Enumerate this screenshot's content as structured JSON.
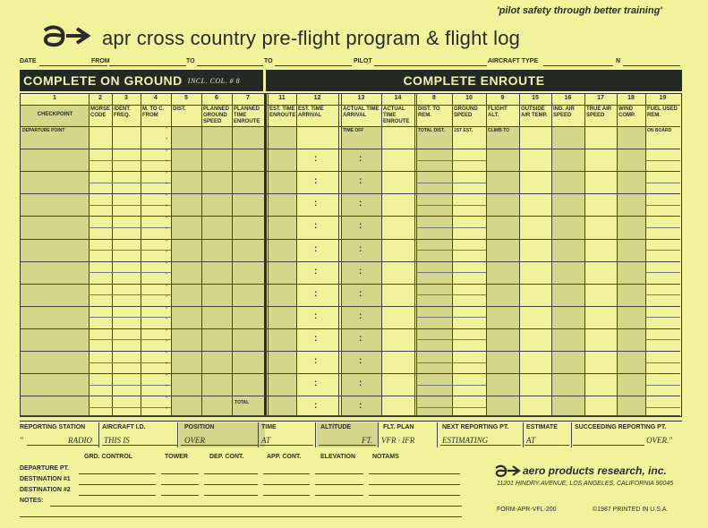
{
  "tagline": "'pilot safety through better training'",
  "title": "apr  cross country pre-flight program & flight log",
  "header_fields": [
    "DATE",
    "FROM",
    "TO",
    "TO",
    "PILOT",
    "AIRCRAFT TYPE",
    "N"
  ],
  "band_left": "COMPLETE ON GROUND",
  "band_left_note": "INCL. COL. # 8",
  "band_right": "COMPLETE ENROUTE",
  "col_numbers": [
    "1",
    "2",
    "3",
    "4",
    "5",
    "6",
    "7",
    "11",
    "12",
    "13",
    "14",
    "8",
    "10",
    "9",
    "15",
    "16",
    "17",
    "18",
    "19"
  ],
  "col_headers": [
    "CHECKPOINT",
    "MORSE CODE",
    "IDENT. FREQ.",
    "M. TO C. FROM",
    "DIST.",
    "PLANNED GROUND SPEED",
    "PLANNED TIME ENROUTE",
    "EST. TIME ENROUTE",
    "EST. TIME ARRIVAL",
    "ACTUAL TIME ARRIVAL",
    "ACTUAL TIME ENROUTE",
    "DIST. TO REM.",
    "GROUND SPEED",
    "FLIGHT ALT.",
    "OUTSIDE AIR TEMP.",
    "IND. AIR SPEED",
    "TRUE AIR SPEED",
    "WIND COMP.",
    "FUEL USED REM."
  ],
  "first_row": {
    "departure": "DEPARTURE POINT",
    "time_off": "TIME OFF",
    "total_dist": "TOTAL DIST.",
    "first_est": "1ST EST.",
    "climb_to": "CLIMB TO",
    "on_board": "ON BOARD"
  },
  "total_label": "TOTAL",
  "reporting": {
    "labels": [
      "REPORTING STATION",
      "AIRCRAFT I.D.",
      "POSITION",
      "TIME",
      "ALTITUDE",
      "FLT. PLAN",
      "NEXT REPORTING PT.",
      "ESTIMATE",
      "SUCCEEDING REPORTING PT."
    ],
    "values": [
      "\"",
      "RADIO",
      "THIS IS",
      "OVER",
      "AT",
      "FT.",
      "VFR · IFR",
      "ESTIMATING",
      "AT",
      "OVER.\""
    ]
  },
  "lower_headers": [
    "GRD. CONTROL",
    "TOWER",
    "DEP. CONT.",
    "APP. CONT.",
    "ELEVATION",
    "NOTAMS"
  ],
  "lower_rows": [
    "DEPARTURE PT.",
    "DESTINATION #1",
    "DESTINATION #2",
    "NOTES:"
  ],
  "company": "aero products research, inc.",
  "address": "11201 HINDRY AVENUE, LOS ANGELES, CALIFORNIA 90045",
  "form_number": "FORM-APR-VFL-200",
  "copyright": "©1987 PRINTED IN U.S.A.",
  "colors": {
    "paper": "#f2f29b",
    "band": "#232a26",
    "shade": "#d6d68a"
  }
}
